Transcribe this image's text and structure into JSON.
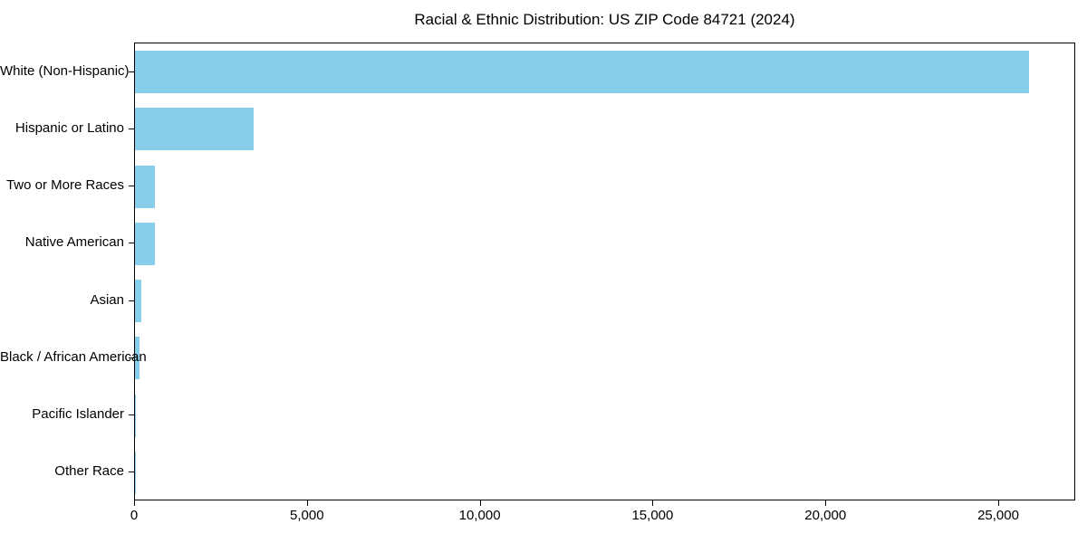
{
  "chart_data": {
    "type": "bar",
    "orientation": "horizontal",
    "title": "Racial & Ethnic Distribution: US ZIP Code 84721 (2024)",
    "categories": [
      "White (Non-Hispanic)",
      "Hispanic or Latino",
      "Two or More Races",
      "Native American",
      "Asian",
      "Black / African American",
      "Pacific Islander",
      "Other Race"
    ],
    "values": [
      25890,
      3430,
      580,
      570,
      175,
      130,
      25,
      10
    ],
    "xlabel": "",
    "ylabel": "",
    "xlim": [
      0,
      27200
    ],
    "xticks": [
      0,
      5000,
      10000,
      15000,
      20000,
      25000
    ],
    "xtick_labels": [
      "0",
      "5,000",
      "10,000",
      "15,000",
      "20,000",
      "25,000"
    ],
    "bar_color": "#87CEEB",
    "axis_color": "#000000",
    "grid": false,
    "legend_position": "none"
  }
}
